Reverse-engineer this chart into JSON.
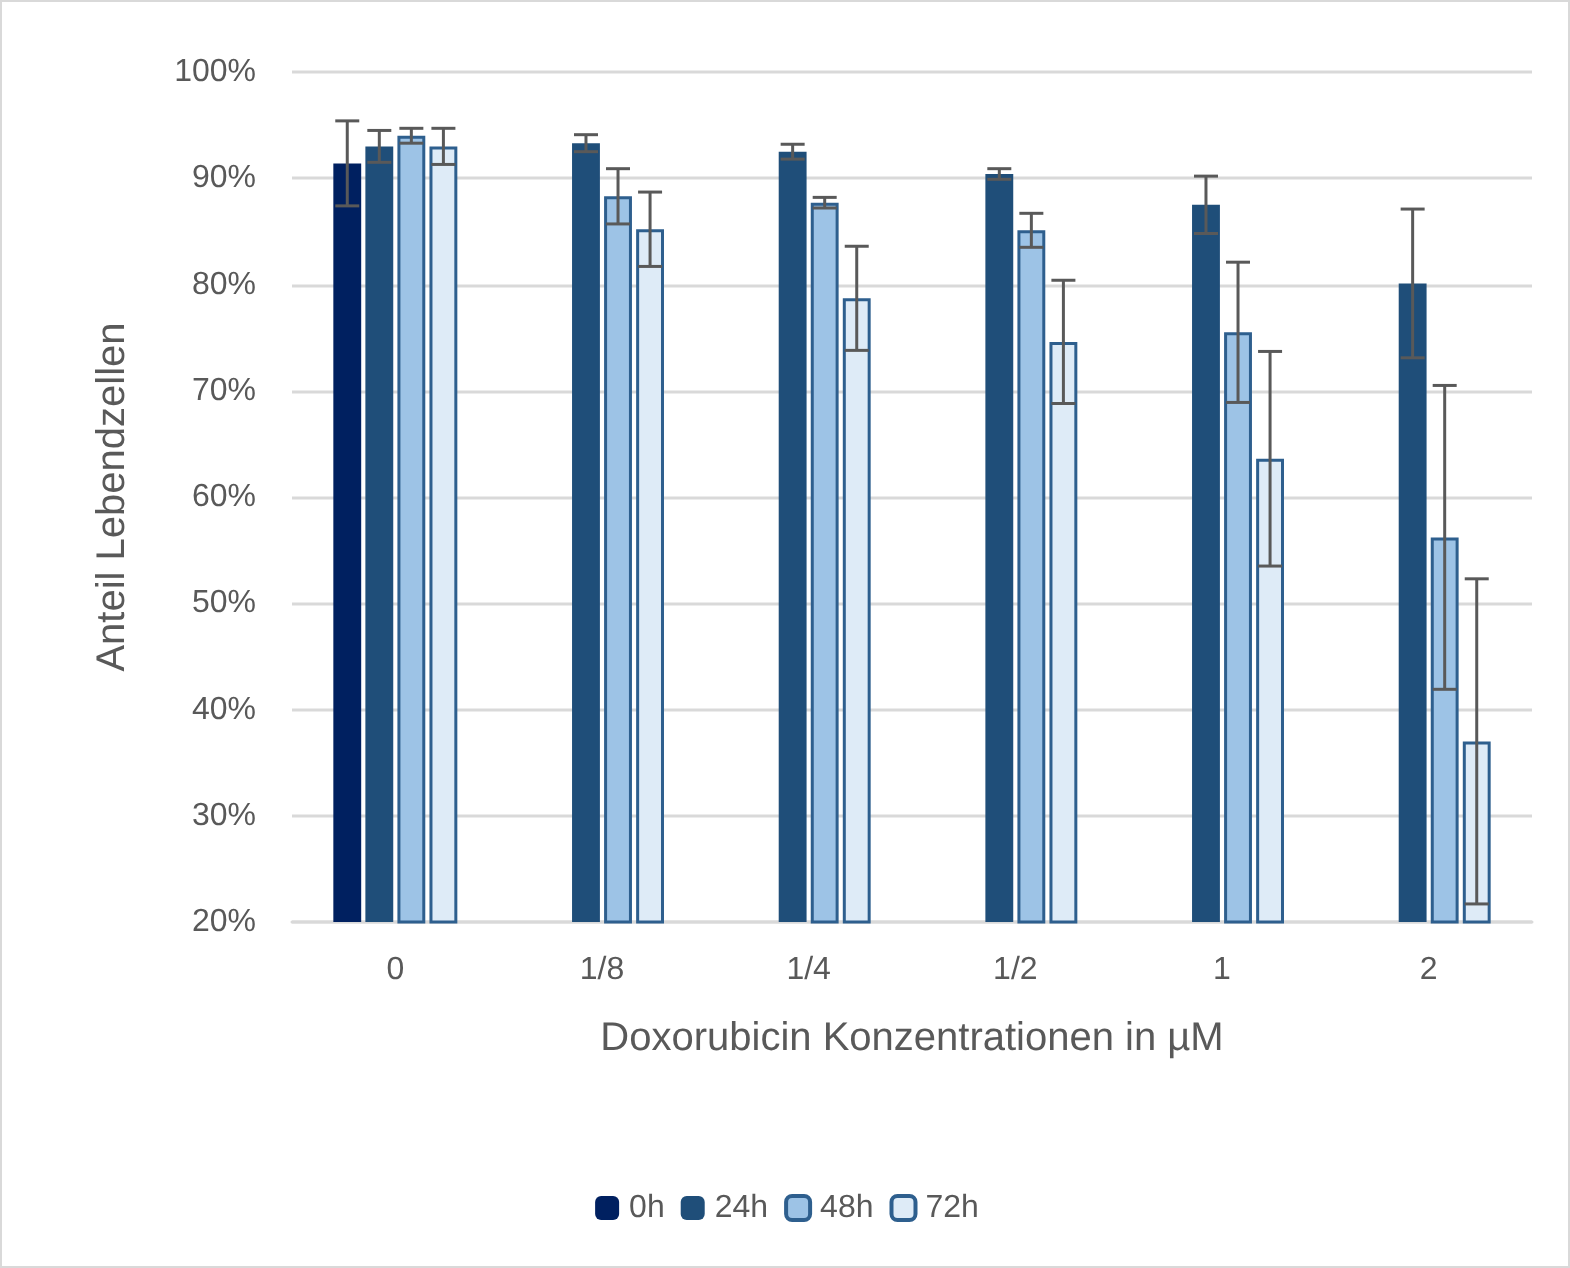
{
  "chart_data": {
    "type": "bar",
    "xlabel": "Doxorubicin Konzentrationen in µM",
    "ylabel": "Anteil Lebendzellen",
    "categories": [
      "0",
      "1/8",
      "1/4",
      "1/2",
      "1",
      "2"
    ],
    "series": [
      {
        "name": "0h",
        "color": "#002060",
        "values": [
          91.4,
          null,
          null,
          null,
          null,
          null
        ],
        "errors": [
          4,
          null,
          null,
          null,
          null,
          null
        ]
      },
      {
        "name": "24h",
        "color": "#1f4e79",
        "values": [
          93,
          93.3,
          92.5,
          90.4,
          87.5,
          80.1
        ],
        "errors": [
          1.5,
          0.8,
          0.7,
          0.5,
          2.7,
          7
        ]
      },
      {
        "name": "48h",
        "color": "#9dc3e6",
        "values": [
          94,
          88.3,
          87.7,
          85.1,
          75.5,
          56.2
        ],
        "errors": [
          0.7,
          2.6,
          0.5,
          1.6,
          6.6,
          14.3
        ]
      },
      {
        "name": "72h",
        "color": "#deebf7",
        "values": [
          93,
          85.2,
          78.7,
          74.6,
          63.6,
          37
        ],
        "errors": [
          1.7,
          3.5,
          4.9,
          5.8,
          10.1,
          15.3
        ]
      }
    ],
    "ylim": [
      20,
      100
    ],
    "yticks": [
      {
        "value": 20,
        "label": "20%"
      },
      {
        "value": 30,
        "label": "30%"
      },
      {
        "value": 40,
        "label": "40%"
      },
      {
        "value": 50,
        "label": "50%"
      },
      {
        "value": 60,
        "label": "60%"
      },
      {
        "value": 70,
        "label": "70%"
      },
      {
        "value": 80,
        "label": "80%"
      },
      {
        "value": 90,
        "label": "90%"
      },
      {
        "value": 100,
        "label": "100%"
      }
    ],
    "grid": "y",
    "legend": "bottom"
  }
}
